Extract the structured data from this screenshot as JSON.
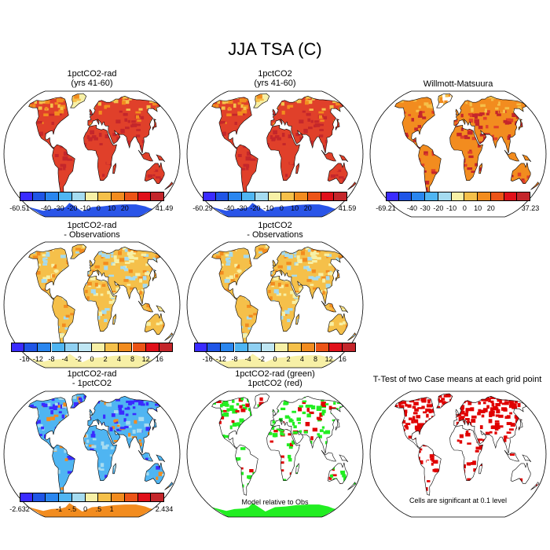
{
  "title": "JJA TSA (C)",
  "panels": [
    {
      "id": "p1",
      "title_lines": [
        "1pctCO2-rad",
        "(yrs 41-60)"
      ],
      "field": "abs",
      "colorbar": "abs1"
    },
    {
      "id": "p2",
      "title_lines": [
        "1pctCO2",
        "(yrs 41-60)"
      ],
      "field": "abs",
      "colorbar": "abs2"
    },
    {
      "id": "p3",
      "title_lines": [
        "Willmott-Matsuura"
      ],
      "field": "abs_obs",
      "colorbar": "abs3"
    },
    {
      "id": "p4",
      "title_lines": [
        "1pctCO2-rad",
        "- Observations"
      ],
      "field": "diff",
      "colorbar": "diff1"
    },
    {
      "id": "p5",
      "title_lines": [
        "1pctCO2",
        "- Observations"
      ],
      "field": "diff",
      "colorbar": "diff2"
    },
    {
      "id": "p6",
      "title_lines": [
        "1pctCO2-rad",
        "- 1pctCO2"
      ],
      "field": "diff_cases",
      "colorbar": "diff3"
    },
    {
      "id": "p7",
      "title_lines": [
        "1pctCO2-rad (green)",
        "1pctCO2 (red)"
      ],
      "field": "rel_obs",
      "note": "Model relative to Obs"
    },
    {
      "id": "p8",
      "title_lines": [
        "T-Test of two Case means at each grid point"
      ],
      "field": "ttest",
      "note": "Cells are significant at 0.1 level"
    }
  ],
  "colorbars": {
    "abs1": {
      "min_label": "-60.51",
      "max_label": "41.49",
      "labels": [
        "-40",
        "-30",
        "-20",
        "-10",
        "0",
        "10",
        "20"
      ],
      "colors": [
        "#3a2bff",
        "#1f55e6",
        "#2a86ef",
        "#4fb5f2",
        "#a5dbf0",
        "#f7f0a6",
        "#f5c04a",
        "#f28c1f",
        "#ec5417",
        "#e0101a",
        "#c4262b"
      ]
    },
    "abs2": {
      "min_label": "-60.29",
      "max_label": "41.59",
      "labels": [
        "-40",
        "-30",
        "-20",
        "-10",
        "0",
        "10",
        "20"
      ],
      "colors": [
        "#3a2bff",
        "#1f55e6",
        "#2a86ef",
        "#4fb5f2",
        "#a5dbf0",
        "#f7f0a6",
        "#f5c04a",
        "#f28c1f",
        "#ec5417",
        "#e0101a",
        "#c4262b"
      ]
    },
    "abs3": {
      "min_label": "-69.21",
      "max_label": "37.23",
      "labels": [
        "-40",
        "-30",
        "-20",
        "-10",
        "0",
        "10",
        "20"
      ],
      "colors": [
        "#3a2bff",
        "#1f55e6",
        "#2a86ef",
        "#4fb5f2",
        "#a5dbf0",
        "#f7f0a6",
        "#f5c04a",
        "#f28c1f",
        "#ec5417",
        "#e0101a",
        "#c4262b"
      ]
    },
    "diff1": {
      "labels": [
        "-16",
        "-12",
        "-8",
        "-4",
        "-2",
        "0",
        "2",
        "4",
        "8",
        "12",
        "16"
      ],
      "colors": [
        "#3a2bff",
        "#1f55e6",
        "#2a86ef",
        "#4fb5f2",
        "#8fd0f2",
        "#bfe6f3",
        "#f7f0a6",
        "#f5c04a",
        "#f28c1f",
        "#ec5417",
        "#e0101a",
        "#c4262b"
      ]
    },
    "diff2": {
      "labels": [
        "-16",
        "-12",
        "-8",
        "-4",
        "-2",
        "0",
        "2",
        "4",
        "8",
        "12",
        "16"
      ],
      "colors": [
        "#3a2bff",
        "#1f55e6",
        "#2a86ef",
        "#4fb5f2",
        "#8fd0f2",
        "#bfe6f3",
        "#f7f0a6",
        "#f5c04a",
        "#f28c1f",
        "#ec5417",
        "#e0101a",
        "#c4262b"
      ]
    },
    "diff3": {
      "min_label": "-2.632",
      "max_label": "2.434",
      "labels": [
        "-1",
        "-.5",
        "0",
        ".5",
        "1"
      ],
      "colors": [
        "#3a2bff",
        "#1f55e6",
        "#2a86ef",
        "#4fb5f2",
        "#a5dbf0",
        "#f7f0a6",
        "#f5c04a",
        "#f28c1f",
        "#ec5417",
        "#e0101a",
        "#c4262b"
      ]
    }
  },
  "colors": {
    "land_abs": "#e0402a",
    "land_abs_hot": "#c4262b",
    "land_abs_warm": "#f28c1f",
    "land_diff": "#f5c04a",
    "land_diff_light": "#f7f0a6",
    "land_diff_blue": "#a5dbf0",
    "land_cases": "#4fb5f2",
    "land_cases_dark": "#3a2bff",
    "ant_abs": "#2a55e8",
    "green": "#22ee22",
    "red": "#e00000"
  }
}
